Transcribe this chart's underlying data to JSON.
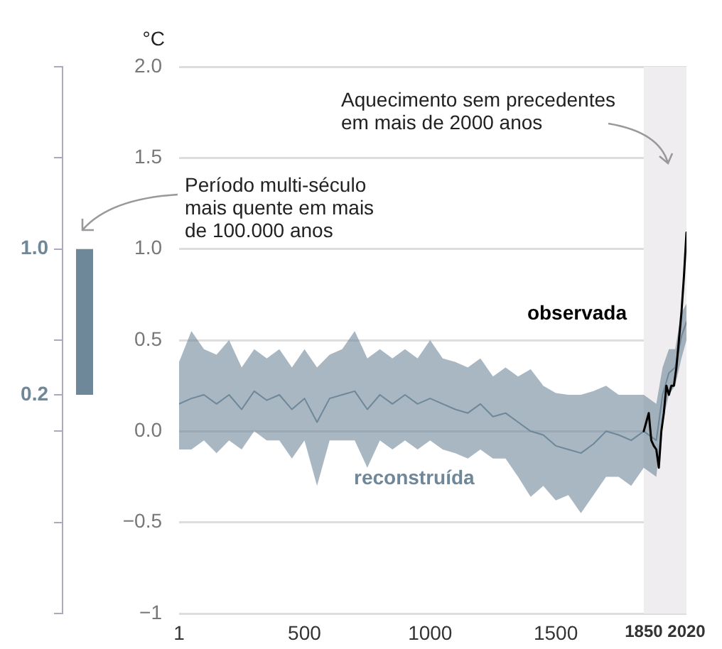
{
  "chart_data": [
    {
      "type": "bar",
      "tick_labels": "y",
      "categories": [
        null
      ],
      "values": [
        0.8
      ],
      "base": [
        0.2
      ],
      "color": "#6e8799",
      "ylim": [
        -1,
        2
      ],
      "yticks": [
        {
          "value": 2,
          "label": null
        },
        {
          "value": 1.5,
          "label": null
        },
        {
          "value": 1,
          "label": "1.0"
        },
        {
          "value": 0.5,
          "label": null
        },
        {
          "value": 0.2,
          "label": "0.2"
        },
        {
          "value": 0,
          "label": null
        },
        {
          "value": -0.5,
          "label": null
        },
        {
          "value": -1,
          "label": null
        }
      ]
    },
    {
      "type": "line",
      "ylabel": "°C",
      "xlim": [
        1,
        2020
      ],
      "xticks": [
        1,
        500,
        1000,
        1500,
        1850,
        2020
      ],
      "ylim": [
        -1,
        2
      ],
      "yticks": [
        {
          "value": 2,
          "label": "2.0"
        },
        1.5,
        {
          "value": 1,
          "label": "1.0"
        },
        0.5,
        {
          "value": 0,
          "label": "0.0"
        },
        {
          "value": -0.5,
          "label": "−0.5"
        },
        {
          "value": -1,
          "label": "−1"
        }
      ],
      "grid": "y",
      "legend": false,
      "bands": [
        {
          "axis": "x",
          "from": 1850,
          "to": 2020,
          "color": "#efedef"
        }
      ],
      "annotations": [
        "Aquecimento sem precedentes\nem mais de 2000 anos",
        "Período multi-século\nmais quente em mais\nde 100.000 anos"
      ],
      "series": [
        {
          "name": "reconstruída",
          "color": "#6e8799",
          "x": [
            1,
            50,
            100,
            150,
            200,
            250,
            300,
            350,
            400,
            450,
            500,
            550,
            600,
            650,
            700,
            750,
            800,
            850,
            900,
            950,
            1000,
            1050,
            1100,
            1150,
            1200,
            1250,
            1300,
            1350,
            1400,
            1450,
            1500,
            1550,
            1600,
            1650,
            1700,
            1750,
            1800,
            1850,
            1900,
            1925,
            1950,
            1975,
            2000,
            2020
          ],
          "values": [
            0.15,
            0.18,
            0.2,
            0.15,
            0.2,
            0.12,
            0.22,
            0.17,
            0.2,
            0.12,
            0.18,
            0.05,
            0.18,
            0.2,
            0.22,
            0.12,
            0.2,
            0.15,
            0.2,
            0.15,
            0.18,
            0.15,
            0.12,
            0.1,
            0.15,
            0.08,
            0.1,
            0.05,
            0.0,
            -0.02,
            -0.08,
            -0.1,
            -0.12,
            -0.07,
            0.0,
            -0.02,
            -0.05,
            0.0,
            -0.05,
            0.2,
            0.32,
            0.35,
            0.52,
            0.6
          ],
          "upper": [
            0.38,
            0.55,
            0.45,
            0.42,
            0.5,
            0.35,
            0.45,
            0.4,
            0.45,
            0.35,
            0.45,
            0.35,
            0.42,
            0.45,
            0.55,
            0.4,
            0.45,
            0.4,
            0.45,
            0.4,
            0.5,
            0.4,
            0.38,
            0.35,
            0.4,
            0.3,
            0.35,
            0.3,
            0.34,
            0.25,
            0.21,
            0.2,
            0.2,
            0.22,
            0.25,
            0.2,
            0.2,
            0.2,
            0.15,
            0.35,
            0.45,
            0.45,
            0.65,
            0.7
          ],
          "lower": [
            -0.1,
            -0.1,
            -0.05,
            -0.12,
            -0.05,
            -0.1,
            0.0,
            -0.05,
            -0.05,
            -0.15,
            -0.05,
            -0.3,
            -0.05,
            -0.05,
            -0.05,
            -0.2,
            -0.05,
            -0.1,
            -0.05,
            -0.1,
            -0.05,
            -0.1,
            -0.12,
            -0.15,
            -0.1,
            -0.15,
            -0.15,
            -0.25,
            -0.36,
            -0.3,
            -0.38,
            -0.35,
            -0.45,
            -0.35,
            -0.25,
            -0.25,
            -0.3,
            -0.2,
            -0.25,
            0.05,
            0.2,
            0.25,
            0.4,
            0.5
          ]
        },
        {
          "name": "observada",
          "color": "#000000",
          "x": [
            1850,
            1860,
            1870,
            1880,
            1890,
            1900,
            1910,
            1920,
            1930,
            1940,
            1950,
            1960,
            1970,
            1980,
            1990,
            2000,
            2010,
            2020
          ],
          "values": [
            0.0,
            0.05,
            0.1,
            -0.05,
            -0.08,
            -0.1,
            -0.2,
            0.0,
            0.1,
            0.25,
            0.2,
            0.25,
            0.25,
            0.35,
            0.5,
            0.65,
            0.85,
            1.09
          ]
        }
      ]
    }
  ]
}
